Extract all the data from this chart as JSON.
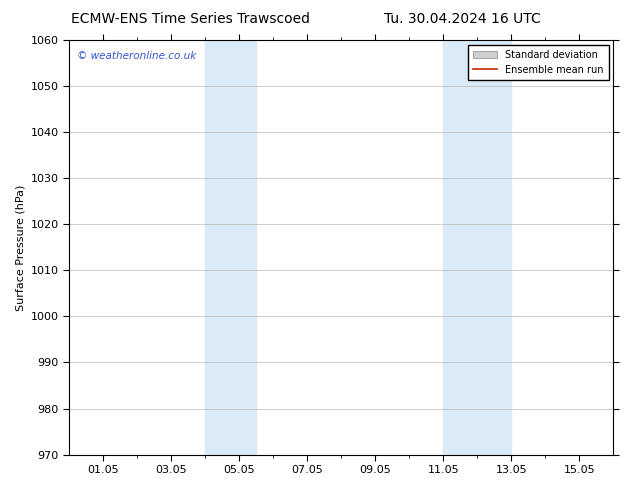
{
  "title_left": "ECMW-ENS Time Series Trawscoed",
  "title_right": "Tu. 30.04.2024 16 UTC",
  "ylabel": "Surface Pressure (hPa)",
  "ylim": [
    970,
    1060
  ],
  "yticks": [
    970,
    980,
    990,
    1000,
    1010,
    1020,
    1030,
    1040,
    1050,
    1060
  ],
  "xtick_labels": [
    "01.05",
    "03.05",
    "05.05",
    "07.05",
    "09.05",
    "11.05",
    "13.05",
    "15.05"
  ],
  "xtick_positions": [
    1,
    3,
    5,
    7,
    9,
    11,
    13,
    15
  ],
  "xlim": [
    0,
    16
  ],
  "shade_bands": [
    {
      "x_start": 4,
      "x_end": 5.5
    },
    {
      "x_start": 11,
      "x_end": 13
    }
  ],
  "shade_color": "#daeaf7",
  "background_color": "#ffffff",
  "watermark_text": "© weatheronline.co.uk",
  "watermark_color": "#3355cc",
  "legend_items": [
    {
      "label": "Standard deviation",
      "color": "#d0d0d0",
      "type": "patch"
    },
    {
      "label": "Ensemble mean run",
      "color": "#cc2200",
      "type": "line"
    }
  ],
  "title_fontsize": 10,
  "tick_fontsize": 8,
  "ylabel_fontsize": 8
}
